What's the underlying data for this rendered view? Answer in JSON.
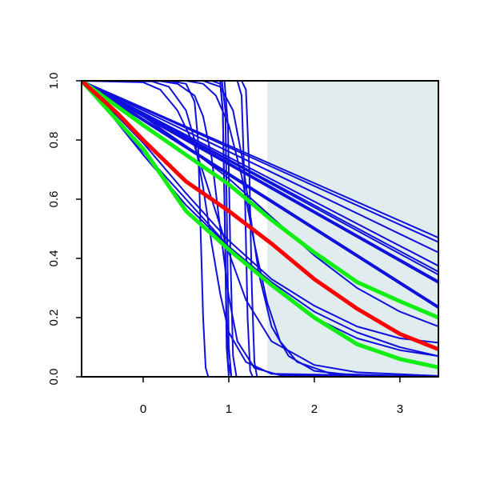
{
  "chart_data": {
    "type": "line",
    "title": "",
    "xlabel": "",
    "ylabel": "",
    "xlim": [
      -0.72,
      3.45
    ],
    "ylim": [
      0,
      1
    ],
    "x_ticks": [
      0,
      1,
      2,
      3
    ],
    "x_tick_labels": [
      "0",
      "1",
      "2",
      "3"
    ],
    "y_ticks": [
      0,
      0.2,
      0.4,
      0.6,
      0.8,
      1.0
    ],
    "y_tick_labels": [
      "0.0",
      "0.2",
      "0.4",
      "0.6",
      "0.8",
      "1.0"
    ],
    "grid": false,
    "legend": "none",
    "shaded_region": {
      "x_from": 1.45,
      "x_to": 3.45,
      "color": "#e0eced"
    },
    "colors": {
      "blue": "#1010dd",
      "red": "#ff0000",
      "green": "#11ee11",
      "axis": "#000000"
    },
    "series": [
      {
        "color": "blue",
        "width": 2,
        "points": [
          [
            -0.72,
            1
          ],
          [
            3.45,
            0.47
          ]
        ]
      },
      {
        "color": "blue",
        "width": 2,
        "points": [
          [
            -0.72,
            1
          ],
          [
            3.45,
            0.455
          ]
        ]
      },
      {
        "color": "blue",
        "width": 2,
        "points": [
          [
            -0.72,
            1
          ],
          [
            3.45,
            0.42
          ]
        ]
      },
      {
        "color": "blue",
        "width": 2,
        "points": [
          [
            -0.72,
            1
          ],
          [
            3.45,
            0.375
          ]
        ]
      },
      {
        "color": "blue",
        "width": 2,
        "points": [
          [
            -0.72,
            1
          ],
          [
            3.45,
            0.355
          ]
        ]
      },
      {
        "color": "blue",
        "width": 2,
        "points": [
          [
            -0.72,
            1
          ],
          [
            3.45,
            0.345
          ]
        ]
      },
      {
        "color": "blue",
        "width": 4,
        "points": [
          [
            -0.72,
            1
          ],
          [
            3.45,
            0.32
          ]
        ]
      },
      {
        "color": "blue",
        "width": 4,
        "points": [
          [
            -0.72,
            1
          ],
          [
            3.45,
            0.235
          ]
        ]
      },
      {
        "color": "blue",
        "width": 2,
        "points": [
          [
            -0.72,
            1
          ],
          [
            0.0,
            0.88
          ],
          [
            0.5,
            0.78
          ],
          [
            1.0,
            0.67
          ],
          [
            1.5,
            0.54
          ],
          [
            2.0,
            0.41
          ],
          [
            2.5,
            0.3
          ],
          [
            3.0,
            0.22
          ],
          [
            3.45,
            0.17
          ]
        ]
      },
      {
        "color": "blue",
        "width": 2,
        "points": [
          [
            -0.72,
            1
          ],
          [
            -0.3,
            0.86
          ],
          [
            0.0,
            0.76
          ],
          [
            0.5,
            0.6
          ],
          [
            1.0,
            0.44
          ],
          [
            1.5,
            0.31
          ],
          [
            2.0,
            0.2
          ],
          [
            2.5,
            0.13
          ],
          [
            3.0,
            0.09
          ],
          [
            3.45,
            0.07
          ]
        ]
      },
      {
        "color": "blue",
        "width": 2,
        "points": [
          [
            -0.72,
            1
          ],
          [
            -0.3,
            0.88
          ],
          [
            0.0,
            0.79
          ],
          [
            0.5,
            0.62
          ],
          [
            1.0,
            0.46
          ],
          [
            1.5,
            0.33
          ],
          [
            2.0,
            0.24
          ],
          [
            2.5,
            0.17
          ],
          [
            3.0,
            0.13
          ],
          [
            3.45,
            0.115
          ]
        ]
      },
      {
        "color": "blue",
        "width": 2,
        "points": [
          [
            -0.72,
            1
          ],
          [
            -0.5,
            0.93
          ],
          [
            0.0,
            0.75
          ],
          [
            0.5,
            0.58
          ],
          [
            1.0,
            0.44
          ],
          [
            1.5,
            0.32
          ],
          [
            2.0,
            0.22
          ],
          [
            2.5,
            0.15
          ],
          [
            3.0,
            0.1
          ],
          [
            3.45,
            0.07
          ]
        ]
      },
      {
        "color": "blue",
        "width": 2,
        "points": [
          [
            -0.72,
            1
          ],
          [
            0.0,
            0.995
          ],
          [
            0.2,
            0.97
          ],
          [
            0.4,
            0.9
          ],
          [
            0.6,
            0.78
          ],
          [
            0.8,
            0.6
          ],
          [
            1.0,
            0.42
          ],
          [
            1.2,
            0.26
          ],
          [
            1.5,
            0.12
          ],
          [
            2.0,
            0.04
          ],
          [
            2.5,
            0.015
          ],
          [
            3.45,
            0.003
          ]
        ]
      },
      {
        "color": "blue",
        "width": 2,
        "points": [
          [
            -0.72,
            1
          ],
          [
            0.2,
            0.999
          ],
          [
            0.4,
            0.99
          ],
          [
            0.6,
            0.95
          ],
          [
            0.7,
            0.88
          ],
          [
            0.8,
            0.74
          ],
          [
            0.9,
            0.5
          ],
          [
            1.0,
            0.27
          ],
          [
            1.1,
            0.12
          ],
          [
            1.3,
            0.03
          ],
          [
            1.6,
            0.005
          ],
          [
            3.45,
            0
          ]
        ]
      },
      {
        "color": "blue",
        "width": 2,
        "points": [
          [
            -0.72,
            1
          ],
          [
            0.1,
            0.998
          ],
          [
            0.3,
            0.98
          ],
          [
            0.5,
            0.9
          ],
          [
            0.6,
            0.8
          ],
          [
            0.7,
            0.64
          ],
          [
            0.8,
            0.45
          ],
          [
            0.9,
            0.28
          ],
          [
            1.0,
            0.15
          ],
          [
            1.2,
            0.05
          ],
          [
            1.5,
            0.01
          ],
          [
            3.45,
            0
          ]
        ]
      },
      {
        "color": "blue",
        "width": 2,
        "points": [
          [
            -0.72,
            1
          ],
          [
            0.3,
            1
          ],
          [
            0.5,
            0.99
          ],
          [
            0.6,
            0.93
          ],
          [
            0.64,
            0.8
          ],
          [
            0.67,
            0.5
          ],
          [
            0.7,
            0.2
          ],
          [
            0.73,
            0.03
          ],
          [
            0.76,
            0
          ],
          [
            3.45,
            0
          ]
        ]
      },
      {
        "color": "blue",
        "width": 2,
        "points": [
          [
            -0.72,
            1
          ],
          [
            0.8,
            1
          ],
          [
            0.9,
            0.99
          ],
          [
            0.93,
            0.9
          ],
          [
            0.95,
            0.6
          ],
          [
            0.97,
            0.25
          ],
          [
            0.99,
            0.05
          ],
          [
            1.03,
            0
          ],
          [
            3.45,
            0
          ]
        ]
      },
      {
        "color": "blue",
        "width": 2,
        "points": [
          [
            -0.72,
            1
          ],
          [
            0.9,
            1
          ],
          [
            0.93,
            0.9
          ],
          [
            0.955,
            0.5
          ],
          [
            0.975,
            0.1
          ],
          [
            1.0,
            0
          ],
          [
            3.45,
            0
          ]
        ]
      },
      {
        "color": "blue",
        "width": 2,
        "points": [
          [
            -0.72,
            1
          ],
          [
            0.92,
            1
          ],
          [
            0.96,
            0.9
          ],
          [
            0.98,
            0.5
          ],
          [
            1.0,
            0.1
          ],
          [
            1.03,
            0
          ],
          [
            3.45,
            0
          ]
        ]
      },
      {
        "color": "blue",
        "width": 2,
        "points": [
          [
            -0.72,
            1
          ],
          [
            0.95,
            1
          ],
          [
            0.99,
            0.85
          ],
          [
            1.02,
            0.4
          ],
          [
            1.05,
            0.07
          ],
          [
            1.09,
            0
          ],
          [
            3.45,
            0
          ]
        ]
      },
      {
        "color": "blue",
        "width": 2,
        "points": [
          [
            -0.72,
            1
          ],
          [
            1.1,
            1
          ],
          [
            1.15,
            0.95
          ],
          [
            1.19,
            0.6
          ],
          [
            1.22,
            0.2
          ],
          [
            1.25,
            0.02
          ],
          [
            1.28,
            0
          ],
          [
            3.45,
            0
          ]
        ]
      },
      {
        "color": "blue",
        "width": 2,
        "points": [
          [
            -0.72,
            1
          ],
          [
            1.15,
            1
          ],
          [
            1.2,
            0.97
          ],
          [
            1.24,
            0.7
          ],
          [
            1.27,
            0.3
          ],
          [
            1.3,
            0.05
          ],
          [
            1.33,
            0
          ],
          [
            3.45,
            0
          ]
        ]
      },
      {
        "color": "blue",
        "width": 2,
        "points": [
          [
            -0.72,
            1
          ],
          [
            0.7,
            1
          ],
          [
            0.9,
            0.98
          ],
          [
            1.05,
            0.9
          ],
          [
            1.15,
            0.75
          ],
          [
            1.25,
            0.55
          ],
          [
            1.35,
            0.35
          ],
          [
            1.5,
            0.17
          ],
          [
            1.7,
            0.07
          ],
          [
            2.0,
            0.02
          ],
          [
            2.5,
            0.004
          ],
          [
            3.45,
            0
          ]
        ]
      },
      {
        "color": "blue",
        "width": 2,
        "points": [
          [
            -0.72,
            1
          ],
          [
            0.5,
            1
          ],
          [
            0.7,
            0.99
          ],
          [
            0.85,
            0.95
          ],
          [
            1.0,
            0.85
          ],
          [
            1.15,
            0.68
          ],
          [
            1.3,
            0.45
          ],
          [
            1.45,
            0.25
          ],
          [
            1.6,
            0.12
          ],
          [
            1.8,
            0.05
          ],
          [
            2.2,
            0.01
          ],
          [
            3.45,
            0
          ]
        ]
      },
      {
        "color": "green",
        "width": 5,
        "points": [
          [
            -0.72,
            1
          ],
          [
            -0.3,
            0.865
          ],
          [
            0.0,
            0.77
          ],
          [
            0.5,
            0.56
          ],
          [
            1.0,
            0.43
          ],
          [
            1.5,
            0.31
          ],
          [
            2.0,
            0.2
          ],
          [
            2.5,
            0.11
          ],
          [
            3.0,
            0.06
          ],
          [
            3.45,
            0.032
          ]
        ]
      },
      {
        "color": "green",
        "width": 5,
        "points": [
          [
            -0.72,
            1
          ],
          [
            0.0,
            0.85
          ],
          [
            0.5,
            0.75
          ],
          [
            1.0,
            0.65
          ],
          [
            1.5,
            0.53
          ],
          [
            2.0,
            0.42
          ],
          [
            2.5,
            0.32
          ],
          [
            3.0,
            0.255
          ],
          [
            3.45,
            0.2
          ]
        ]
      },
      {
        "color": "red",
        "width": 5,
        "points": [
          [
            -0.72,
            1
          ],
          [
            -0.3,
            0.89
          ],
          [
            0.0,
            0.8
          ],
          [
            0.5,
            0.66
          ],
          [
            1.0,
            0.56
          ],
          [
            1.5,
            0.45
          ],
          [
            2.0,
            0.33
          ],
          [
            2.5,
            0.23
          ],
          [
            3.0,
            0.145
          ],
          [
            3.45,
            0.093
          ]
        ]
      }
    ]
  }
}
